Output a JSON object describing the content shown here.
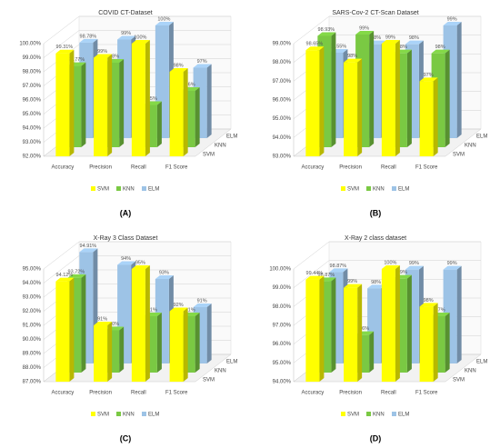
{
  "chart_data": [
    {
      "type": "bar3d",
      "title": "COVID CT-Dataset",
      "panel_label": "(A)",
      "categories": [
        "Accuracy",
        "Precision",
        "Recall",
        "F1 Score"
      ],
      "series": [
        {
          "name": "SVM",
          "color": "#ffff00",
          "values": [
            99.31,
            99,
            100,
            98
          ],
          "value_labels": [
            "99.31%",
            "99%",
            "100%",
            "98%"
          ]
        },
        {
          "name": "KNN",
          "color": "#7ac943",
          "values": [
            97.77,
            98,
            95,
            96
          ],
          "value_labels": [
            "97.77%",
            "98%",
            "95%",
            "96%"
          ]
        },
        {
          "name": "ELM",
          "color": "#9dc3e6",
          "values": [
            98.78,
            99,
            100,
            97
          ],
          "value_labels": [
            "98.78%",
            "99%",
            "100%",
            "97%"
          ]
        }
      ],
      "ylim": [
        92,
        100
      ],
      "yticks": [
        {
          "value": 92,
          "label": "92.00%"
        },
        {
          "value": 93,
          "label": "93.00%"
        },
        {
          "value": 94,
          "label": "94.00%"
        },
        {
          "value": 95,
          "label": "95.00%"
        },
        {
          "value": 96,
          "label": "96.00%"
        },
        {
          "value": 97,
          "label": "97.00%"
        },
        {
          "value": 98,
          "label": "98.00%"
        },
        {
          "value": 99,
          "label": "99.00%"
        },
        {
          "value": 100,
          "label": "100.00%"
        }
      ],
      "grid": true
    },
    {
      "type": "bar3d",
      "title": "SARS-Cov-2 CT-Scan Dataset",
      "panel_label": "(B)",
      "categories": [
        "Accuracy",
        "Precision",
        "Recall",
        "F1 Score"
      ],
      "series": [
        {
          "name": "SVM",
          "color": "#ffff00",
          "values": [
            98.65,
            98,
            99,
            97
          ],
          "value_labels": [
            "98.65%",
            "98%",
            "99%",
            "97%"
          ]
        },
        {
          "name": "KNN",
          "color": "#7ac943",
          "values": [
            98.93,
            99,
            98,
            98
          ],
          "value_labels": [
            "98.93%",
            "99%",
            "98%",
            "98%"
          ]
        },
        {
          "name": "ELM",
          "color": "#9dc3e6",
          "values": [
            97.55,
            98,
            98,
            99
          ],
          "value_labels": [
            "97.55%",
            "98%",
            "98%",
            "99%"
          ]
        }
      ],
      "ylim": [
        93,
        99
      ],
      "yticks": [
        {
          "value": 93,
          "label": "93.00%"
        },
        {
          "value": 94,
          "label": "94.00%"
        },
        {
          "value": 95,
          "label": "95.00%"
        },
        {
          "value": 96,
          "label": "96.00%"
        },
        {
          "value": 97,
          "label": "97.00%"
        },
        {
          "value": 98,
          "label": "98.00%"
        },
        {
          "value": 99,
          "label": "99.00%"
        }
      ],
      "grid": true
    },
    {
      "type": "bar3d",
      "title": "X-Ray 3 Class Dataset",
      "panel_label": "(C)",
      "categories": [
        "Accuracy",
        "Precision",
        "Recall",
        "F1 Score"
      ],
      "series": [
        {
          "name": "SVM",
          "color": "#ffff00",
          "values": [
            94.12,
            91,
            95,
            92
          ],
          "value_labels": [
            "94.12%",
            "91%",
            "95%",
            "92%"
          ]
        },
        {
          "name": "KNN",
          "color": "#7ac943",
          "values": [
            93.72,
            90,
            91,
            91
          ],
          "value_labels": [
            "93.72%",
            "90%",
            "91%",
            "91%"
          ]
        },
        {
          "name": "ELM",
          "color": "#9dc3e6",
          "values": [
            94.91,
            94,
            93,
            91
          ],
          "value_labels": [
            "94.91%",
            "94%",
            "93%",
            "91%"
          ]
        }
      ],
      "ylim": [
        87,
        95
      ],
      "yticks": [
        {
          "value": 87,
          "label": "87.00%"
        },
        {
          "value": 88,
          "label": "88.00%"
        },
        {
          "value": 89,
          "label": "89.00%"
        },
        {
          "value": 90,
          "label": "90.00%"
        },
        {
          "value": 91,
          "label": "91.00%"
        },
        {
          "value": 92,
          "label": "92.00%"
        },
        {
          "value": 93,
          "label": "93.00%"
        },
        {
          "value": 94,
          "label": "94.00%"
        },
        {
          "value": 95,
          "label": "95.00%"
        }
      ],
      "grid": true
    },
    {
      "type": "bar3d",
      "title": "X-Ray 2 class dataset",
      "panel_label": "(D)",
      "categories": [
        "Accuracy",
        "Precision",
        "Recall",
        "F1 Score"
      ],
      "series": [
        {
          "name": "SVM",
          "color": "#ffff00",
          "values": [
            99.44,
            99,
            100,
            98
          ],
          "value_labels": [
            "99.44%",
            "99%",
            "100%",
            "98%"
          ]
        },
        {
          "name": "KNN",
          "color": "#7ac943",
          "values": [
            98.87,
            96,
            99,
            97
          ],
          "value_labels": [
            "98.87%",
            "96%",
            "99%",
            "97%"
          ]
        },
        {
          "name": "ELM",
          "color": "#9dc3e6",
          "values": [
            98.87,
            98,
            99,
            99
          ],
          "value_labels": [
            "98.87%",
            "98%",
            "99%",
            "99%"
          ]
        }
      ],
      "ylim": [
        94,
        100
      ],
      "yticks": [
        {
          "value": 94,
          "label": "94.00%"
        },
        {
          "value": 95,
          "label": "95.00%"
        },
        {
          "value": 96,
          "label": "96.00%"
        },
        {
          "value": 97,
          "label": "97.00%"
        },
        {
          "value": 98,
          "label": "98.00%"
        },
        {
          "value": 99,
          "label": "99.00%"
        },
        {
          "value": 100,
          "label": "100.00%"
        }
      ],
      "grid": true
    }
  ]
}
